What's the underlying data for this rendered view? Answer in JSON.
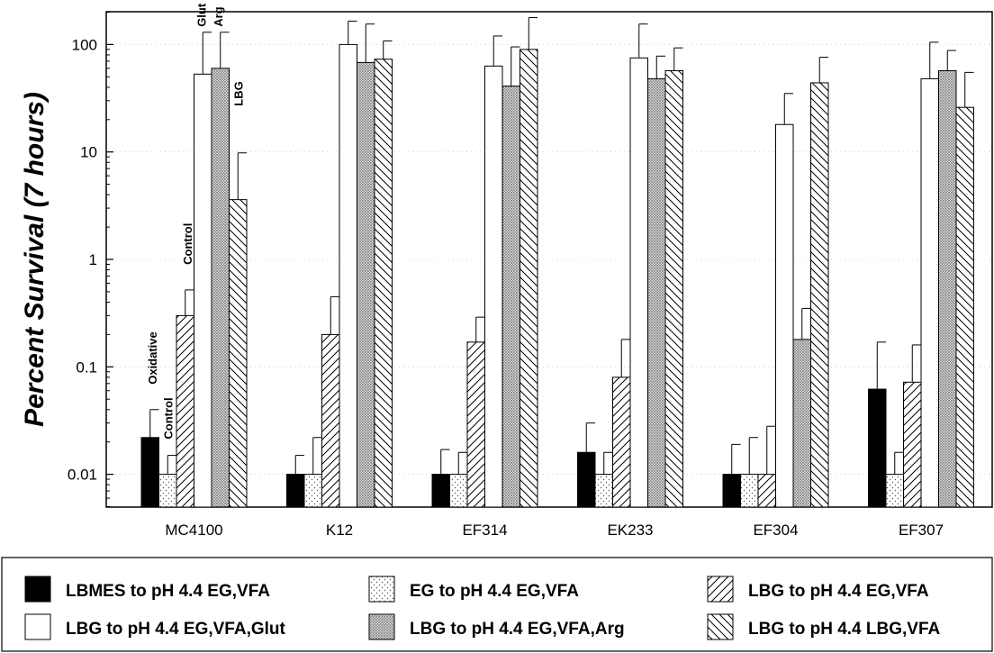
{
  "chart_data": {
    "type": "bar",
    "ylabel": "Percent Survival (7 hours)",
    "xlabel": "",
    "yscale": "log",
    "ylim": [
      0.005,
      200
    ],
    "yticks": [
      0.01,
      0.1,
      1,
      10,
      100
    ],
    "ytick_labels": [
      "0.01",
      "0.1",
      "1",
      "10",
      "100"
    ],
    "categories": [
      "MC4100",
      "K12",
      "EF314",
      "EK233",
      "EF304",
      "EF307"
    ],
    "series": [
      {
        "name": "LBMES to pH 4.4 EG,VFA",
        "pattern": "solid",
        "values": [
          0.022,
          0.01,
          0.01,
          0.016,
          0.01,
          0.062
        ],
        "errors": [
          0.04,
          0.015,
          0.017,
          0.03,
          0.019,
          0.17
        ]
      },
      {
        "name": "EG to pH 4.4 EG,VFA",
        "pattern": "dots",
        "values": [
          0.01,
          0.01,
          0.01,
          0.01,
          0.01,
          0.01
        ],
        "errors": [
          0.015,
          0.022,
          0.016,
          0.016,
          0.022,
          0.016
        ]
      },
      {
        "name": "LBG to pH 4.4 EG,VFA",
        "pattern": "hatch-forward",
        "values": [
          0.3,
          0.2,
          0.17,
          0.08,
          0.01,
          0.072
        ],
        "errors": [
          0.52,
          0.45,
          0.29,
          0.18,
          0.028,
          0.16
        ]
      },
      {
        "name": "LBG to pH 4.4 EG,VFA,Glut",
        "pattern": "open",
        "values": [
          53,
          100,
          63,
          75,
          18,
          48
        ],
        "errors": [
          130,
          165,
          120,
          155,
          35,
          105
        ]
      },
      {
        "name": "LBG to pH 4.4 EG,VFA,Arg",
        "pattern": "stipple",
        "values": [
          60,
          68,
          41,
          48,
          0.18,
          57
        ],
        "errors": [
          130,
          155,
          95,
          78,
          0.35,
          88
        ]
      },
      {
        "name": "LBG to pH 4.4 LBG,VFA",
        "pattern": "hatch-back",
        "values": [
          3.6,
          73,
          90,
          57,
          44,
          26
        ],
        "errors": [
          9.8,
          108,
          178,
          93,
          76,
          55
        ]
      }
    ],
    "annotations": [
      {
        "text": "Oxidative",
        "category": "MC4100",
        "series": 0
      },
      {
        "text": "Control",
        "category": "MC4100",
        "series": 1
      },
      {
        "text": "Control",
        "category": "MC4100",
        "series": 2
      },
      {
        "text": "Glut",
        "category": "MC4100",
        "series": 3
      },
      {
        "text": "Arg",
        "category": "MC4100",
        "series": 4
      },
      {
        "text": "LBG",
        "category": "MC4100",
        "series": 5
      }
    ],
    "legend": {
      "placement": "bottom",
      "columns": 3
    },
    "grid": true
  }
}
